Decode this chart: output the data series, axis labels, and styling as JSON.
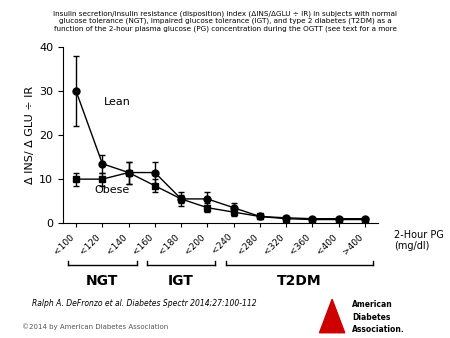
{
  "title_lines": [
    "Insulin secretion/insulin resistance (disposition) index (ΔINS/ΔGLU ÷ IR) in subjects with normal",
    "glucose tolerance (NGT), impaired glucose tolerance (IGT), and type 2 diabetes (T2DM) as a",
    "function of the 2-hour plasma glucose (PG) concentration during the OGTT (see text for a more"
  ],
  "x_labels": [
    "<100",
    "<120",
    "<140",
    "<160",
    "<180",
    "<200",
    "<240",
    "<280",
    "<320",
    "<360",
    "<400",
    ">400"
  ],
  "x_positions": [
    0,
    1,
    2,
    3,
    4,
    5,
    6,
    7,
    8,
    9,
    10,
    11
  ],
  "lean_y": [
    30.0,
    13.5,
    11.5,
    11.5,
    5.5,
    5.5,
    3.5,
    1.5,
    1.2,
    1.0,
    1.0,
    1.0
  ],
  "lean_yerr": [
    8.0,
    2.0,
    2.5,
    2.5,
    1.5,
    1.5,
    1.0,
    0.5,
    0.3,
    0.2,
    0.2,
    0.2
  ],
  "obese_y": [
    10.0,
    10.0,
    11.5,
    8.5,
    5.5,
    3.5,
    2.5,
    1.5,
    1.0,
    0.8,
    0.8,
    0.8
  ],
  "obese_yerr": [
    1.5,
    1.5,
    2.5,
    1.5,
    1.0,
    1.0,
    0.8,
    0.4,
    0.2,
    0.2,
    0.2,
    0.2
  ],
  "ylabel": "Δ INS/ Δ GLU ÷ IR",
  "xlabel_right": "2-Hour PG\n(mg/dl)",
  "ylim": [
    0,
    40
  ],
  "yticks": [
    0,
    10,
    20,
    30,
    40
  ],
  "lean_label": "Lean",
  "obese_label": "Obese",
  "ngt_label": "NGT",
  "igt_label": "IGT",
  "t2dm_label": "T2DM",
  "citation": "Ralph A. DeFronzo et al. Diabetes Spectr 2014;27:100-112",
  "copyright": "©2014 by American Diabetes Association",
  "marker_size": 5,
  "line_color": "black",
  "bg_color": "white"
}
